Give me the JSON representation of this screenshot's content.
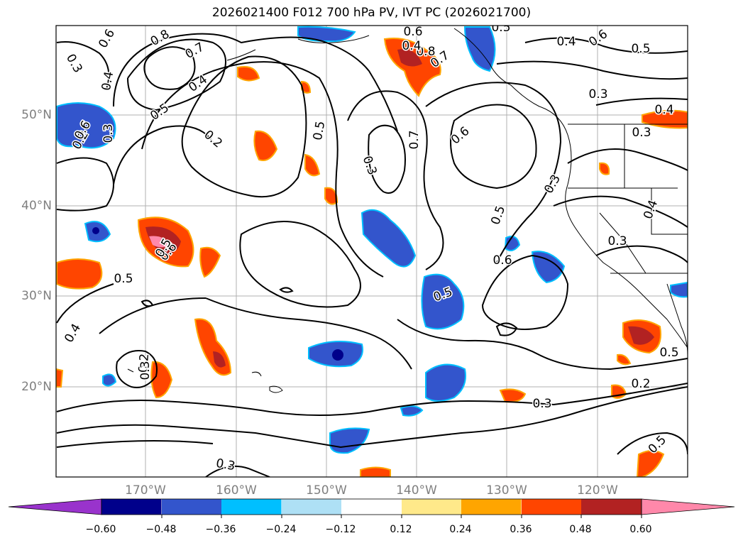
{
  "title": "2026021400 F012 700 hPa PV, IVT PC (2026021700)",
  "lat_labels": [
    "50°N",
    "40°N",
    "30°N",
    "20°N"
  ],
  "lon_labels": [
    "170°W",
    "160°W",
    "150°W",
    "140°W",
    "130°W",
    "120°W"
  ],
  "colorbar": {
    "ticks": [
      "−0.60",
      "−0.48",
      "−0.36",
      "−0.24",
      "−0.12",
      "0.12",
      "0.24",
      "0.36",
      "0.48",
      "0.60"
    ],
    "colors": [
      "#9933cc",
      "#00008b",
      "#3355cc",
      "#00bfff",
      "#aee0f5",
      "#ffffff",
      "#ffe98a",
      "#ffa500",
      "#ff4500",
      "#b22222",
      "#ff88aa"
    ]
  },
  "contour_labels": [
    "0.8",
    "0.7",
    "0.4",
    "0.5",
    "0.3",
    "0.2",
    "0.3",
    "0.6",
    "0.8",
    "0.7",
    "0.5",
    "0.4",
    "0.6",
    "0.5",
    "0.3",
    "0.4",
    "0.5",
    "0.3",
    "0.7",
    "0.6",
    "0.3",
    "0.3",
    "0.5",
    "0.4",
    "0.3",
    "0.5",
    "0.6",
    "0.5",
    "0.6",
    "0.5",
    "0.4",
    "0.2",
    "0.3",
    "0.2",
    "0.5",
    "0.3",
    "0.2",
    "0.6",
    "0.4",
    "0.6",
    "0.3",
    "0.5",
    "0.4"
  ]
}
